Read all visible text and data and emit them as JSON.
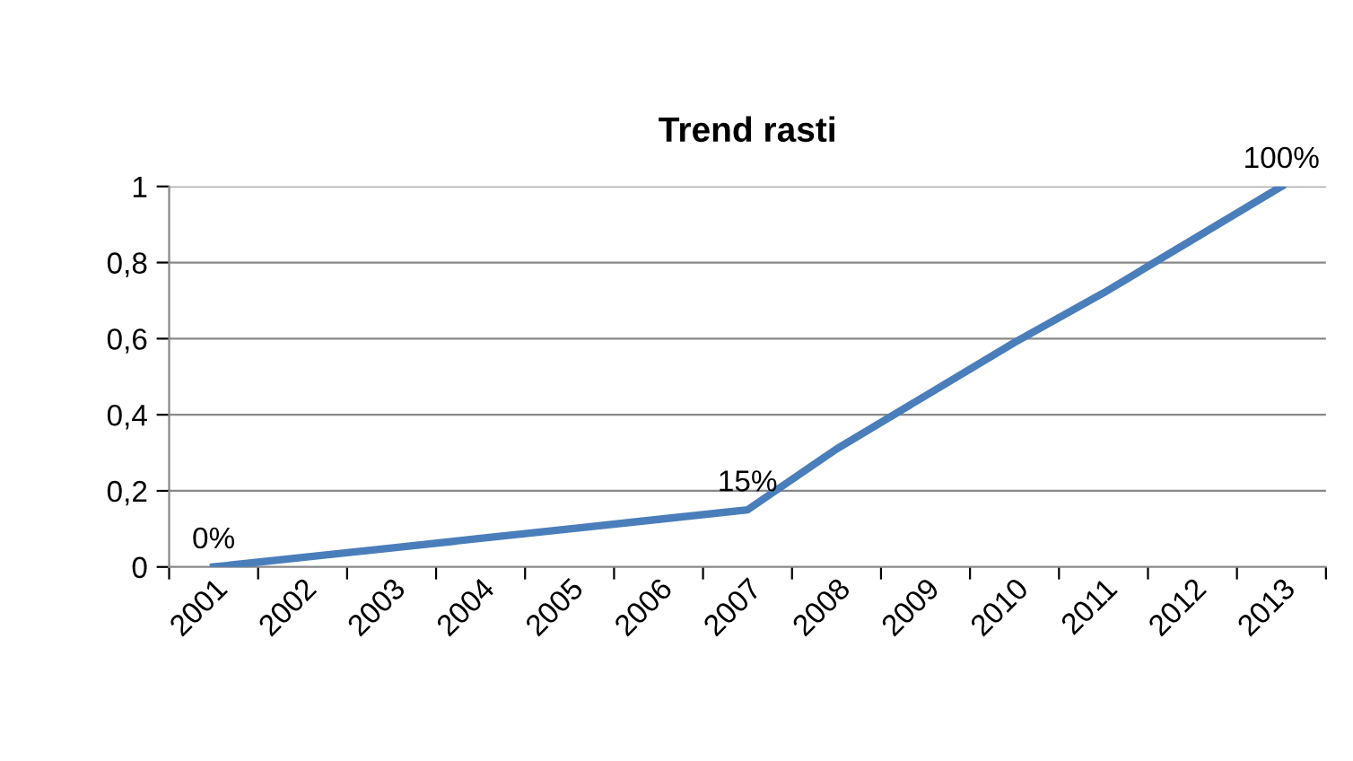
{
  "chart_data": {
    "type": "line",
    "title": "Trend rasti",
    "categories": [
      "2001",
      "2002",
      "2003",
      "2004",
      "2005",
      "2006",
      "2007",
      "2008",
      "2009",
      "2010",
      "2011",
      "2012",
      "2013"
    ],
    "series": [
      {
        "color": "#4a7ebb",
        "values": [
          0,
          0.025,
          0.05,
          0.075,
          0.1,
          0.125,
          0.15,
          0.31,
          0.45,
          0.59,
          0.72,
          0.86,
          1
        ],
        "value_labels": [
          "0%",
          null,
          null,
          null,
          null,
          null,
          "15%",
          null,
          null,
          null,
          null,
          null,
          "100%"
        ]
      }
    ],
    "ylim": [
      0,
      1
    ],
    "yticks": [
      0,
      {
        "value": 0.2,
        "label": "0,2"
      },
      {
        "value": 0.4,
        "label": "0,4"
      },
      {
        "value": 0.6,
        "label": "0,6"
      },
      {
        "value": 0.8,
        "label": "0,8"
      },
      1
    ],
    "grid": "y",
    "legend": false,
    "marker": "none",
    "line_style": "solid"
  }
}
